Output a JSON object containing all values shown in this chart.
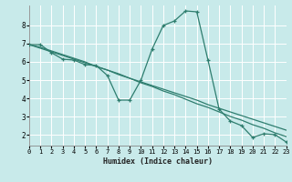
{
  "xlabel": "Humidex (Indice chaleur)",
  "background_color": "#c8eaea",
  "grid_color": "#b0d8d8",
  "line_color": "#2e7d6e",
  "x_ticks": [
    0,
    1,
    2,
    3,
    4,
    5,
    6,
    7,
    8,
    9,
    10,
    11,
    12,
    13,
    14,
    15,
    16,
    17,
    18,
    19,
    20,
    21,
    22,
    23
  ],
  "y_ticks": [
    2,
    3,
    4,
    5,
    6,
    7,
    8
  ],
  "xlim": [
    0,
    23
  ],
  "ylim": [
    1.4,
    9.1
  ],
  "series1_x": [
    0,
    1,
    2,
    3,
    4,
    5,
    6,
    7,
    8,
    9,
    10,
    11,
    12,
    13,
    14,
    15,
    16,
    17,
    18,
    19,
    20,
    21,
    22,
    23
  ],
  "series1_y": [
    6.95,
    6.95,
    6.5,
    6.15,
    6.1,
    5.85,
    5.8,
    5.25,
    3.9,
    3.9,
    5.0,
    6.7,
    8.0,
    8.25,
    8.8,
    8.75,
    6.1,
    3.4,
    2.75,
    2.5,
    1.85,
    2.05,
    2.0,
    1.6
  ],
  "series2_x": [
    0,
    1,
    2,
    3,
    4,
    5,
    6,
    7,
    8,
    9,
    10,
    11,
    12,
    13,
    14,
    15,
    16,
    17,
    18,
    19,
    20,
    21,
    22,
    23
  ],
  "series2_y": [
    6.95,
    6.8,
    6.6,
    6.4,
    6.2,
    6.0,
    5.75,
    5.55,
    5.3,
    5.1,
    4.85,
    4.65,
    4.4,
    4.2,
    3.95,
    3.7,
    3.5,
    3.25,
    3.0,
    2.8,
    2.55,
    2.35,
    2.1,
    1.9
  ],
  "series3_x": [
    0,
    1,
    2,
    3,
    4,
    5,
    6,
    7,
    8,
    9,
    10,
    11,
    12,
    13,
    14,
    15,
    16,
    17,
    18,
    19,
    20,
    21,
    22,
    23
  ],
  "series3_y": [
    6.95,
    6.75,
    6.55,
    6.35,
    6.15,
    5.95,
    5.75,
    5.55,
    5.35,
    5.1,
    4.9,
    4.7,
    4.5,
    4.3,
    4.1,
    3.9,
    3.65,
    3.45,
    3.25,
    3.05,
    2.85,
    2.65,
    2.45,
    2.25
  ],
  "xlabel_fontsize": 6.0,
  "tick_fontsize_x": 5.0,
  "tick_fontsize_y": 5.5
}
